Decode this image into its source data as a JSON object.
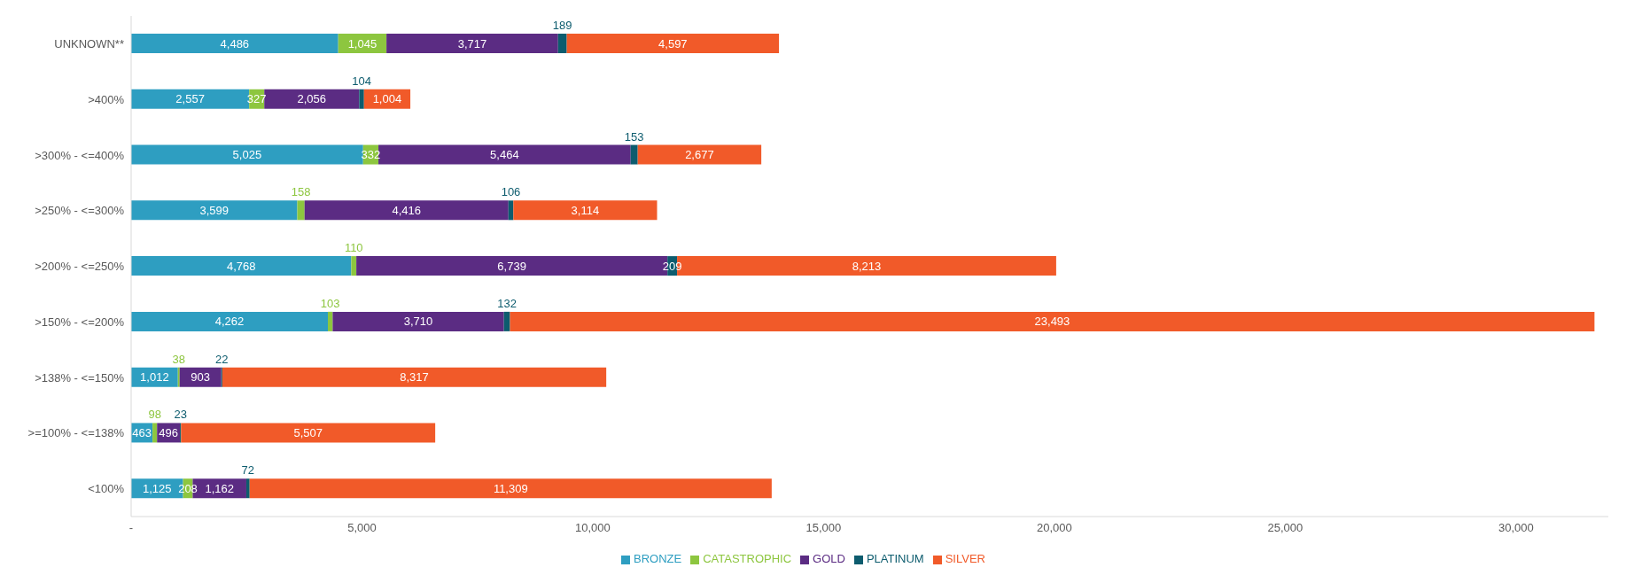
{
  "chart_data": {
    "type": "bar",
    "orientation": "horizontal",
    "stacked": true,
    "legend": "bottom",
    "categories": [
      "UNKNOWN**",
      ">400%",
      ">300% - <=400%",
      ">250% - <=300%",
      ">200% - <=250%",
      ">150% - <=200%",
      ">138% - <=150%",
      ">=100% - <=138%",
      "<100%"
    ],
    "xlim": [
      0,
      32000
    ],
    "xticks": [
      {
        "value": 0,
        "label": "-"
      },
      {
        "value": 5000,
        "label": "5,000"
      },
      {
        "value": 10000,
        "label": "10,000"
      },
      {
        "value": 15000,
        "label": "15,000"
      },
      {
        "value": 20000,
        "label": "20,000"
      },
      {
        "value": 25000,
        "label": "25,000"
      },
      {
        "value": 30000,
        "label": "30,000"
      }
    ],
    "series": [
      {
        "name": "BRONZE",
        "color": "#2e9ec1",
        "values": [
          4486,
          2557,
          5025,
          3599,
          4768,
          4262,
          1012,
          463,
          1125
        ],
        "value_labels": [
          "4,486",
          "2,557",
          "5,025",
          "3,599",
          "4,768",
          "4,262",
          "1,012",
          "463",
          "1,125"
        ]
      },
      {
        "name": "CATASTROPHIC",
        "color": "#8dc63f",
        "values": [
          1045,
          327,
          332,
          158,
          110,
          103,
          38,
          98,
          208
        ],
        "value_labels": [
          "1,045",
          "327",
          "332",
          "158",
          "110",
          "103",
          "38",
          "98",
          "208"
        ]
      },
      {
        "name": "GOLD",
        "color": "#5b2c83",
        "values": [
          3717,
          2056,
          5464,
          4416,
          6739,
          3710,
          903,
          496,
          1162
        ],
        "value_labels": [
          "3,717",
          "2,056",
          "5,464",
          "4,416",
          "6,739",
          "3,710",
          "903",
          "496",
          "1,162"
        ]
      },
      {
        "name": "PLATINUM",
        "color": "#0d5c6e",
        "values": [
          189,
          104,
          153,
          106,
          209,
          132,
          22,
          23,
          72
        ],
        "value_labels": [
          "189",
          "104",
          "153",
          "106",
          "209",
          "132",
          "22",
          "23",
          "72"
        ]
      },
      {
        "name": "SILVER",
        "color": "#f15a29",
        "values": [
          4597,
          1004,
          2677,
          3114,
          8213,
          23493,
          8317,
          5507,
          11309
        ],
        "value_labels": [
          "4,597",
          "1,004",
          "2,677",
          "3,114",
          "8,213",
          "23,493",
          "8,317",
          "5,507",
          "11,309"
        ]
      }
    ]
  }
}
